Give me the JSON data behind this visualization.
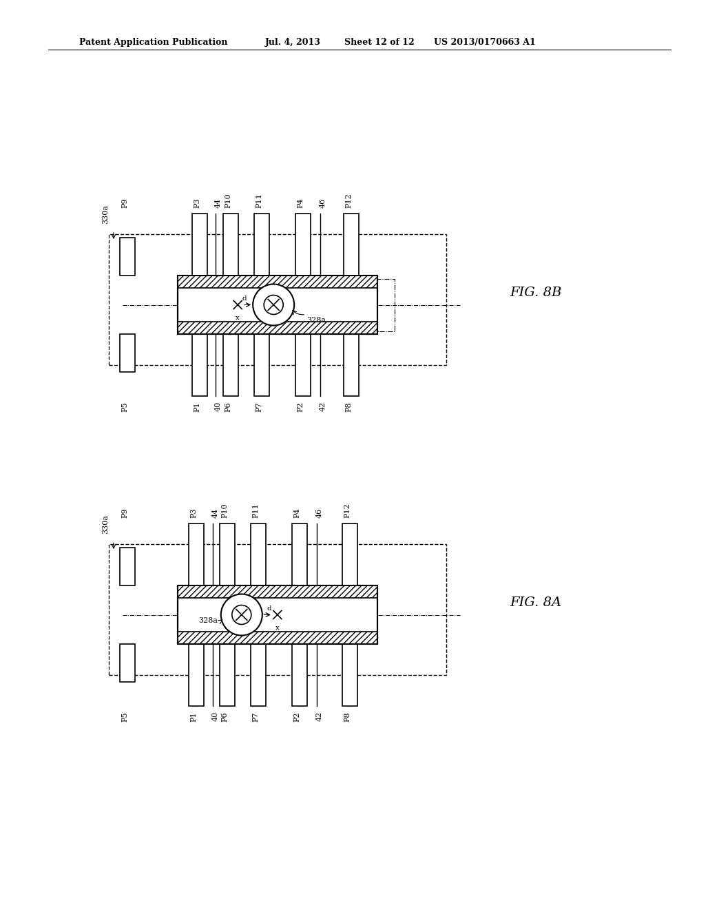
{
  "bg_color": "#ffffff",
  "line_color": "#000000",
  "header_text": "Patent Application Publication",
  "header_date": "Jul. 4, 2013",
  "header_sheet": "Sheet 12 of 12",
  "header_patent": "US 2013/0170663 A1",
  "fig8b_label": "FIG. 8B",
  "fig8a_label": "FIG. 8A",
  "fig_label_fontsize": 14
}
